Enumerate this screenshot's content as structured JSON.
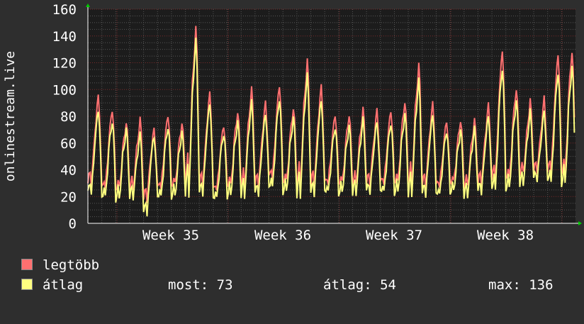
{
  "chart_data": {
    "type": "line",
    "ylabel": "onlinestream.live",
    "ylim": [
      0,
      160
    ],
    "y_ticks": [
      0,
      20,
      40,
      60,
      80,
      100,
      120,
      140,
      160
    ],
    "x_tick_labels": [
      "Week 35",
      "Week 36",
      "Week 37",
      "Week 38"
    ],
    "grid": true,
    "series": [
      {
        "name": "legtöbb",
        "color": "#ff7070",
        "daily_peaks": [
          95,
          86,
          76,
          77,
          70,
          82,
          76,
          145,
          97,
          74,
          84,
          100,
          90,
          104,
          87,
          121,
          102,
          82,
          82,
          85,
          84,
          85,
          92,
          118,
          89,
          77,
          78,
          77,
          88,
          130,
          102,
          92,
          93,
          127,
          130
        ],
        "daily_troughs": [
          30,
          25,
          25,
          26,
          18,
          25,
          28,
          30,
          28,
          24,
          27,
          28,
          28,
          33,
          30,
          28,
          28,
          29,
          29,
          30,
          30,
          29,
          29,
          29,
          28,
          27,
          30,
          28,
          30,
          30,
          32,
          38,
          40,
          36,
          35
        ]
      },
      {
        "name": "átlag",
        "color": "#ffff80",
        "daily_peaks": [
          85,
          77,
          70,
          66,
          65,
          73,
          68,
          136,
          90,
          68,
          76,
          90,
          82,
          94,
          79,
          110,
          92,
          73,
          73,
          77,
          76,
          76,
          82,
          106,
          81,
          70,
          70,
          70,
          80,
          117,
          92,
          83,
          84,
          114,
          118
        ],
        "daily_troughs": [
          22,
          18,
          18,
          20,
          6,
          18,
          20,
          22,
          21,
          17,
          20,
          21,
          21,
          25,
          23,
          21,
          21,
          22,
          22,
          23,
          23,
          22,
          22,
          22,
          21,
          20,
          23,
          21,
          23,
          23,
          25,
          30,
          33,
          29,
          28
        ]
      }
    ],
    "legend_position": "bottom-left"
  },
  "legend": {
    "items": [
      {
        "label": "legtöbb",
        "color": "#ff7070"
      },
      {
        "label": "átlag",
        "color": "#ffff80"
      }
    ],
    "stats": {
      "most": "most: 73",
      "atlag": "átlag: 54",
      "max": "max: 136"
    }
  },
  "colors": {
    "background": "#2e2e2e",
    "plot_background": "#1c1c1c",
    "grid_major": "#7a2a2a",
    "grid_minor": "#555555",
    "axis_arrow": "#00cc00",
    "text": "#ffffff"
  }
}
